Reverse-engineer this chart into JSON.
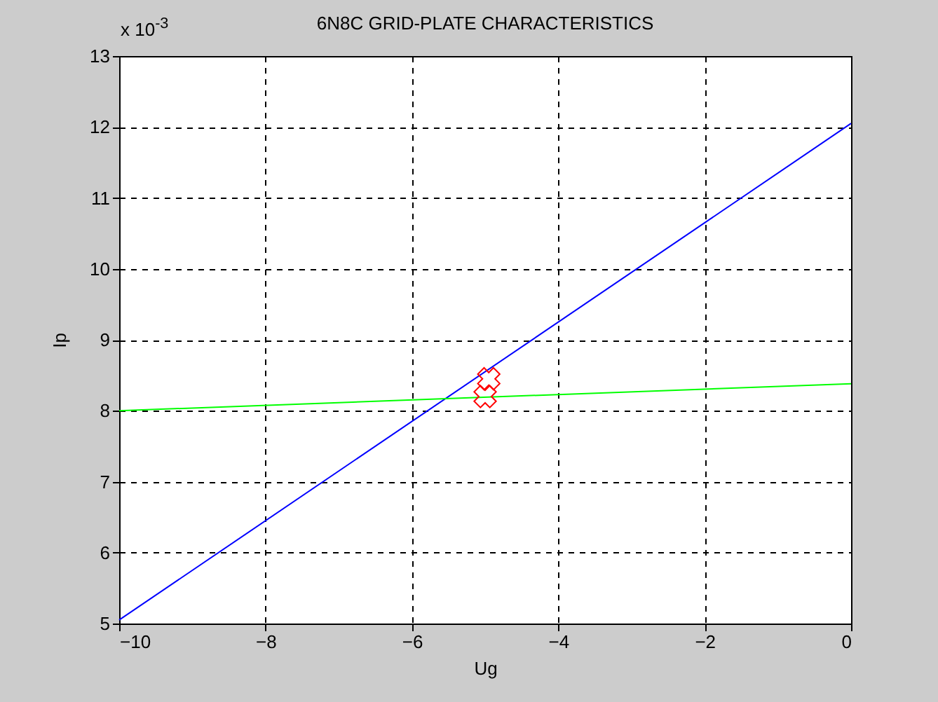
{
  "chart_data": {
    "type": "line",
    "title": "6N8C GRID-PLATE CHARACTERISTICS",
    "xlabel": "Ug",
    "ylabel": "Ip",
    "annotations": [
      "x 10$^{-3}$"
    ],
    "xlim": [
      -10,
      0
    ],
    "xticks": [
      -10,
      -8,
      -6,
      -4,
      -2,
      0
    ],
    "ylim": [
      5,
      13
    ],
    "yticks": [
      5,
      6,
      7,
      8,
      9,
      10,
      11,
      12,
      13
    ],
    "grid": true,
    "series": [
      {
        "color": "#0000ff",
        "x": [
          -10,
          0
        ],
        "values": [
          5.05,
          12.05
        ]
      },
      {
        "color": "#00ff00",
        "x": [
          -10,
          0
        ],
        "values": [
          8.0,
          8.38
        ]
      },
      {
        "type": "scatter",
        "marker": "cross",
        "color": "#ff0000",
        "x": [
          -5,
          -4.95
        ],
        "values": [
          8.2,
          8.45
        ]
      }
    ]
  }
}
